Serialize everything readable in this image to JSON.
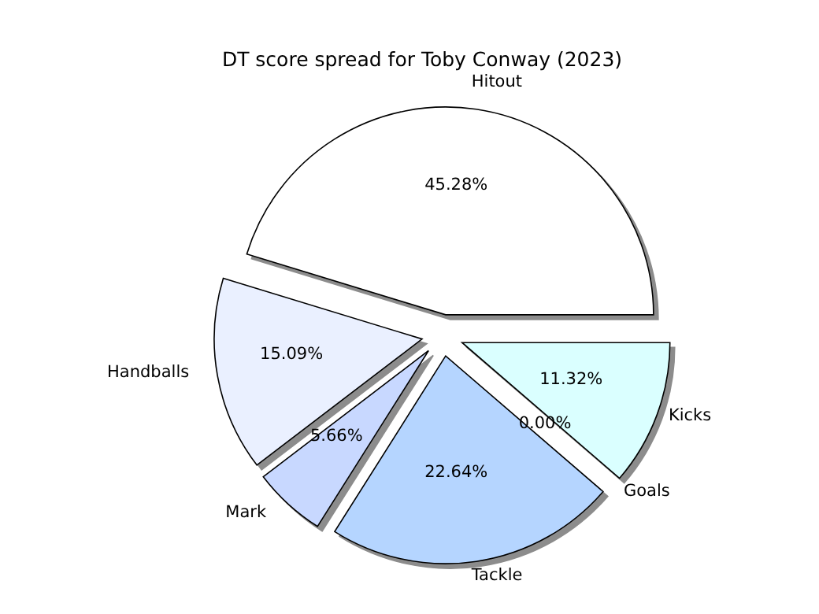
{
  "chart_data": {
    "type": "pie",
    "title": "DT score spread for Toby Conway (2023)",
    "categories": [
      "Hitout",
      "Handballs",
      "Mark",
      "Tackle",
      "Goals",
      "Kicks"
    ],
    "values": [
      45.28,
      15.09,
      5.66,
      22.64,
      0.0,
      11.32
    ],
    "colors": [
      "#ffffff",
      "#eaf0ff",
      "#c8d8ff",
      "#b5d5ff",
      "#c0c0c0",
      "#daffff"
    ],
    "value_labels": [
      "45.28%",
      "15.09%",
      "5.66%",
      "22.64%",
      "0.00%",
      "11.32%"
    ]
  }
}
